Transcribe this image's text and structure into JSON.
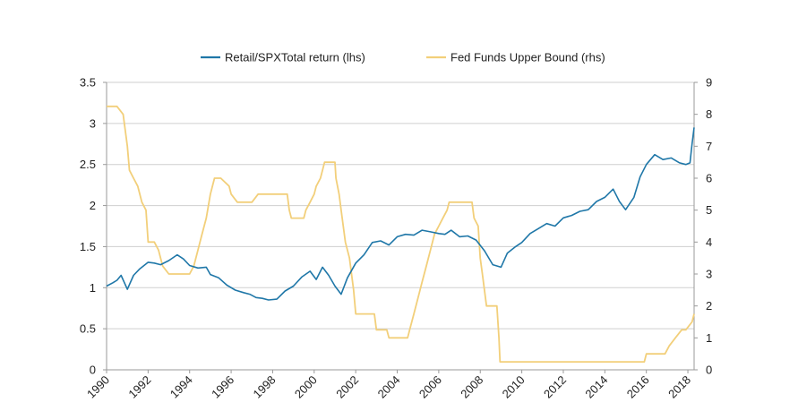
{
  "chart_data": {
    "type": "line",
    "legend_placement": "top-center",
    "grid": "horizontal",
    "x_axis": {
      "min": 1990,
      "max": 2018.3,
      "tick_labels": [
        "1990",
        "1992",
        "1994",
        "1996",
        "1998",
        "2000",
        "2002",
        "2004",
        "2006",
        "2008",
        "2010",
        "2012",
        "2014",
        "2016",
        "2018"
      ]
    },
    "y_left": {
      "min": 0,
      "max": 3.5,
      "tick_labels": [
        "0",
        "0.5",
        "1",
        "1.5",
        "2",
        "2.5",
        "3",
        "3.5"
      ]
    },
    "y_right": {
      "min": 0,
      "max": 9,
      "tick_labels": [
        "0",
        "1",
        "2",
        "3",
        "4",
        "5",
        "6",
        "7",
        "8",
        "9"
      ]
    },
    "series": [
      {
        "name": "Retail/SPXTotal return (lhs)",
        "axis": "left",
        "color": "#1f77a8",
        "x": [
          1990.0,
          1990.3,
          1990.5,
          1990.7,
          1991.0,
          1991.3,
          1991.6,
          1992.0,
          1992.3,
          1992.6,
          1993.0,
          1993.4,
          1993.7,
          1994.0,
          1994.4,
          1994.8,
          1995.0,
          1995.4,
          1995.8,
          1996.2,
          1996.6,
          1996.9,
          1997.2,
          1997.5,
          1997.8,
          1998.2,
          1998.6,
          1999.0,
          1999.4,
          1999.8,
          2000.1,
          2000.4,
          2000.7,
          2001.0,
          2001.3,
          2001.6,
          2002.0,
          2002.4,
          2002.8,
          2003.2,
          2003.6,
          2004.0,
          2004.4,
          2004.8,
          2005.2,
          2005.6,
          2006.0,
          2006.3,
          2006.6,
          2007.0,
          2007.4,
          2007.8,
          2008.2,
          2008.6,
          2009.0,
          2009.3,
          2009.7,
          2010.0,
          2010.4,
          2010.8,
          2011.2,
          2011.6,
          2012.0,
          2012.4,
          2012.8,
          2013.2,
          2013.6,
          2014.0,
          2014.4,
          2014.7,
          2015.0,
          2015.4,
          2015.7,
          2016.0,
          2016.4,
          2016.8,
          2017.2,
          2017.6,
          2017.9,
          2018.1,
          2018.2,
          2018.3
        ],
        "values": [
          1.02,
          1.06,
          1.09,
          1.15,
          0.98,
          1.15,
          1.23,
          1.31,
          1.3,
          1.28,
          1.33,
          1.4,
          1.35,
          1.27,
          1.24,
          1.25,
          1.16,
          1.12,
          1.03,
          0.97,
          0.94,
          0.92,
          0.88,
          0.87,
          0.85,
          0.86,
          0.96,
          1.02,
          1.13,
          1.2,
          1.1,
          1.25,
          1.15,
          1.02,
          0.92,
          1.12,
          1.3,
          1.4,
          1.55,
          1.57,
          1.52,
          1.62,
          1.65,
          1.64,
          1.7,
          1.68,
          1.66,
          1.65,
          1.7,
          1.62,
          1.63,
          1.58,
          1.45,
          1.28,
          1.25,
          1.42,
          1.5,
          1.55,
          1.66,
          1.72,
          1.78,
          1.75,
          1.85,
          1.88,
          1.93,
          1.95,
          2.05,
          2.1,
          2.2,
          2.05,
          1.95,
          2.1,
          2.35,
          2.5,
          2.62,
          2.56,
          2.58,
          2.52,
          2.5,
          2.52,
          2.75,
          2.95
        ]
      },
      {
        "name": "Fed Funds Upper Bound (rhs)",
        "axis": "right",
        "color": "#f2cf7a",
        "x": [
          1990.0,
          1990.5,
          1990.8,
          1991.0,
          1991.1,
          1991.3,
          1991.5,
          1991.7,
          1991.9,
          1992.0,
          1992.3,
          1992.5,
          1992.7,
          1993.0,
          1994.0,
          1994.2,
          1994.4,
          1994.6,
          1994.8,
          1995.0,
          1995.2,
          1995.5,
          1995.9,
          1996.0,
          1996.3,
          1997.0,
          1997.3,
          1998.0,
          1998.7,
          1998.8,
          1998.9,
          1999.5,
          1999.6,
          1999.8,
          2000.0,
          2000.1,
          2000.3,
          2000.5,
          2001.0,
          2001.05,
          2001.2,
          2001.3,
          2001.5,
          2001.7,
          2001.9,
          2002.0,
          2002.9,
          2003.0,
          2003.5,
          2003.6,
          2004.5,
          2004.6,
          2004.8,
          2005.0,
          2005.2,
          2005.4,
          2005.6,
          2005.8,
          2006.0,
          2006.2,
          2006.4,
          2006.5,
          2007.6,
          2007.7,
          2007.9,
          2008.0,
          2008.1,
          2008.3,
          2008.8,
          2008.9,
          2008.95,
          2015.9,
          2016.0,
          2016.9,
          2017.1,
          2017.4,
          2017.7,
          2017.9,
          2018.2,
          2018.3
        ],
        "values": [
          8.25,
          8.25,
          8.0,
          7.0,
          6.25,
          6.0,
          5.75,
          5.25,
          5.0,
          4.0,
          4.0,
          3.75,
          3.25,
          3.0,
          3.0,
          3.25,
          3.75,
          4.25,
          4.75,
          5.5,
          6.0,
          6.0,
          5.75,
          5.5,
          5.25,
          5.25,
          5.5,
          5.5,
          5.5,
          5.0,
          4.75,
          4.75,
          5.0,
          5.25,
          5.5,
          5.75,
          6.0,
          6.5,
          6.5,
          6.0,
          5.5,
          5.0,
          4.0,
          3.5,
          2.5,
          1.75,
          1.75,
          1.25,
          1.25,
          1.0,
          1.0,
          1.25,
          1.75,
          2.25,
          2.75,
          3.25,
          3.75,
          4.25,
          4.5,
          4.75,
          5.0,
          5.25,
          5.25,
          4.75,
          4.5,
          3.5,
          3.0,
          2.0,
          2.0,
          1.0,
          0.25,
          0.25,
          0.5,
          0.5,
          0.75,
          1.0,
          1.25,
          1.25,
          1.5,
          1.75
        ]
      }
    ]
  }
}
